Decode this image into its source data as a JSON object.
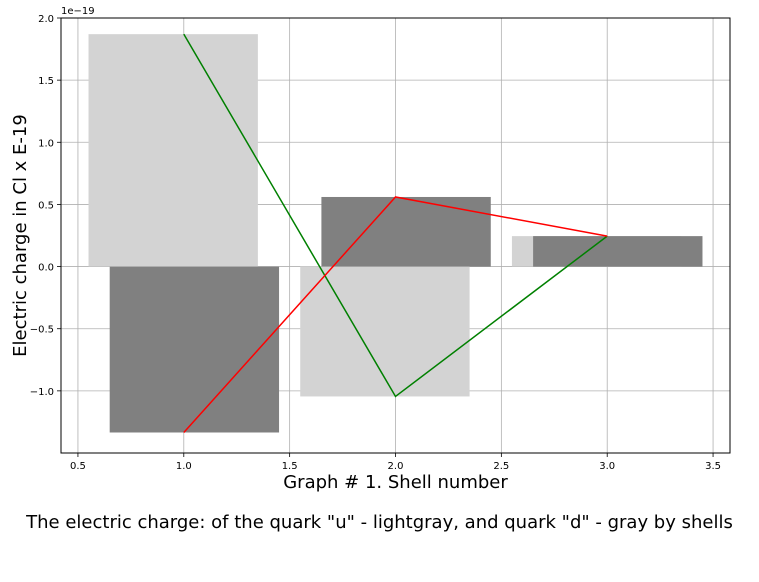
{
  "chart_data": {
    "type": "bar",
    "xlabel": "Graph # 1. Shell number",
    "ylabel": "Electric charge in Cl x E-19",
    "y_offset_text": "1e−19",
    "caption": "The electric charge: of the quark \"u\" - lightgray, and quark \"d\" - gray by shells",
    "xlim": [
      0.42,
      3.58
    ],
    "ylim": [
      -1.5,
      2.0
    ],
    "xticks": [
      0.5,
      1.0,
      1.5,
      2.0,
      2.5,
      3.0,
      3.5
    ],
    "xtick_labels": [
      "0.5",
      "1.0",
      "1.5",
      "2.0",
      "2.5",
      "3.0",
      "3.5"
    ],
    "yticks": [
      -1.0,
      -0.5,
      0.0,
      0.5,
      1.0,
      1.5,
      2.0
    ],
    "ytick_labels": [
      "−1.0",
      "−0.5",
      "0.0",
      "0.5",
      "1.0",
      "1.5",
      "2.0"
    ],
    "grid": true,
    "bar_width": 0.8,
    "bars": [
      {
        "series": "u",
        "x": 0.95,
        "value": 1.87,
        "color": "#d3d3d3"
      },
      {
        "series": "d",
        "x": 1.05,
        "value": -1.335,
        "color": "#808080"
      },
      {
        "series": "u",
        "x": 1.95,
        "value": -1.045,
        "color": "#d3d3d3"
      },
      {
        "series": "d",
        "x": 2.05,
        "value": 0.56,
        "color": "#808080"
      },
      {
        "series": "u",
        "x": 2.95,
        "value": 0.245,
        "color": "#d3d3d3"
      },
      {
        "series": "d",
        "x": 3.05,
        "value": 0.245,
        "color": "#808080"
      }
    ],
    "lines": [
      {
        "color": "#008000",
        "x": [
          1,
          2,
          3
        ],
        "y": [
          1.87,
          -1.045,
          0.245
        ]
      },
      {
        "color": "#ff0000",
        "x": [
          1,
          2,
          3
        ],
        "y": [
          -1.335,
          0.56,
          0.245
        ]
      }
    ]
  }
}
